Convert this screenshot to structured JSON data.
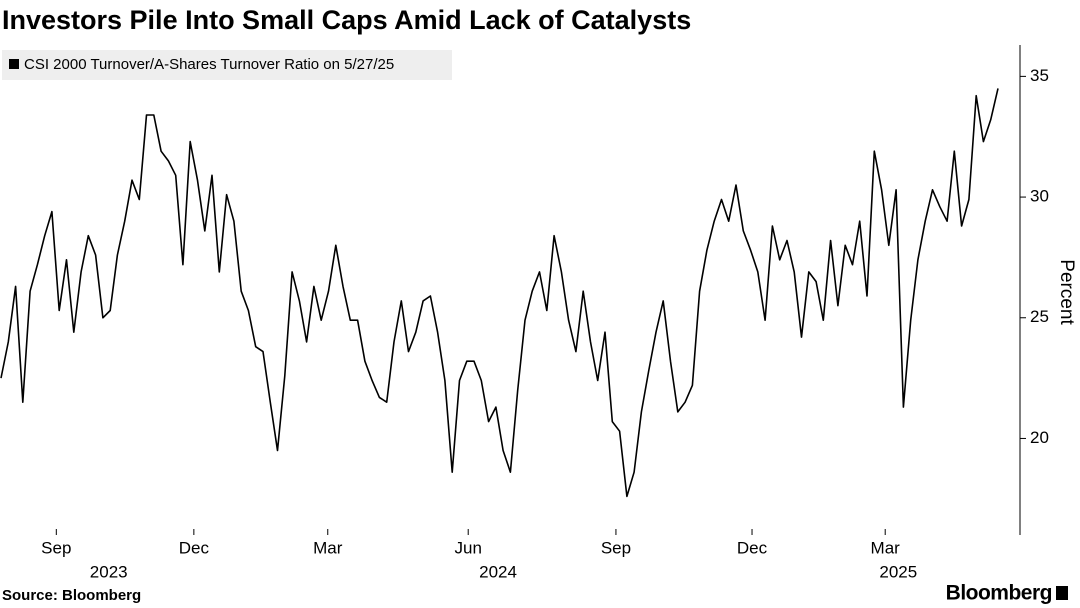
{
  "chart_data": {
    "type": "line",
    "title": "Investors Pile Into Small Caps Amid Lack of Catalysts",
    "y_axis_label": "Percent",
    "source": "Source: Bloomberg",
    "brand": "Bloomberg",
    "series": [
      {
        "name": "CSI 2000 Turnover/A-Shares Turnover Ratio on 5/27/25",
        "color": "#000000",
        "values": [
          22.5,
          24.0,
          26.3,
          21.5,
          26.1,
          27.2,
          28.4,
          29.4,
          25.3,
          27.4,
          24.4,
          26.9,
          28.4,
          27.6,
          25.0,
          25.3,
          27.6,
          29.0,
          30.7,
          29.9,
          33.4,
          33.4,
          31.9,
          31.5,
          30.9,
          27.2,
          32.3,
          30.7,
          28.6,
          30.9,
          26.9,
          30.1,
          29.0,
          26.1,
          25.3,
          23.8,
          23.6,
          21.5,
          19.5,
          22.6,
          26.9,
          25.7,
          24.0,
          26.3,
          24.9,
          26.1,
          28.0,
          26.3,
          24.9,
          24.9,
          23.2,
          22.4,
          21.7,
          21.5,
          24.0,
          25.7,
          23.6,
          24.4,
          25.7,
          25.9,
          24.4,
          22.4,
          18.6,
          22.4,
          23.2,
          23.2,
          22.4,
          20.7,
          21.3,
          19.5,
          18.6,
          22.0,
          24.9,
          26.1,
          26.9,
          25.3,
          28.4,
          26.9,
          24.9,
          23.6,
          26.1,
          24.0,
          22.4,
          24.4,
          20.7,
          20.3,
          17.6,
          18.6,
          21.1,
          22.8,
          24.4,
          25.7,
          23.2,
          21.1,
          21.5,
          22.2,
          26.1,
          27.8,
          29.0,
          29.9,
          29.0,
          30.5,
          28.6,
          27.8,
          26.9,
          24.9,
          28.8,
          27.4,
          28.2,
          26.9,
          24.2,
          26.9,
          26.5,
          24.9,
          28.2,
          25.5,
          28.0,
          27.2,
          29.0,
          25.9,
          31.9,
          30.3,
          28.0,
          30.3,
          21.3,
          24.9,
          27.4,
          29.0,
          30.3,
          29.6,
          29.0,
          31.9,
          28.8,
          29.9,
          34.2,
          32.3,
          33.2,
          34.5
        ]
      }
    ],
    "xlim": [
      0,
      137
    ],
    "xticks": [
      {
        "value": 7.6,
        "label": "Sep"
      },
      {
        "value": 26.5,
        "label": "Dec"
      },
      {
        "value": 44.9,
        "label": "Mar"
      },
      {
        "value": 64.2,
        "label": "Jun"
      },
      {
        "value": 84.5,
        "label": "Sep"
      },
      {
        "value": 103.2,
        "label": "Dec"
      },
      {
        "value": 121.5,
        "label": "Mar"
      }
    ],
    "year_labels": [
      {
        "value": 14.8,
        "label": "2023"
      },
      {
        "value": 68.3,
        "label": "2024"
      },
      {
        "value": 123.3,
        "label": "2025"
      }
    ],
    "ylim": [
      16,
      36.3
    ],
    "yticks": [
      20,
      25,
      30,
      35
    ],
    "grid": false
  }
}
